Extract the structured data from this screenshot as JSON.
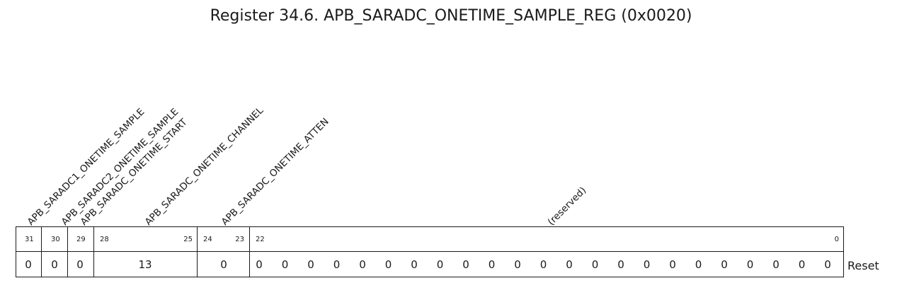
{
  "title": "Register 34.6. APB_SARADC_ONETIME_SAMPLE_REG (0x0020)",
  "fields": [
    {
      "name": "APB_SARADC1_ONETIME_SAMPLE",
      "bits": "31",
      "reset": "0"
    },
    {
      "name": "APB_SARADC2_ONETIME_SAMPLE",
      "bits": "30",
      "reset": "0"
    },
    {
      "name": "APB_SARADC_ONETIME_START",
      "bits": "29",
      "reset": "0"
    },
    {
      "name": "APB_SARADC_ONETIME_CHANNEL",
      "bits": "28:25",
      "msb": "28",
      "lsb": "25",
      "reset": "13"
    },
    {
      "name": "APB_SARADC_ONETIME_ATTEN",
      "bits": "24:23",
      "msb": "24",
      "lsb": "23",
      "reset": "0"
    },
    {
      "name": "(reserved)",
      "bits": "22:0",
      "msb": "22",
      "lsb": "0",
      "reset_bits": [
        "0",
        "0",
        "0",
        "0",
        "0",
        "0",
        "0",
        "0",
        "0",
        "0",
        "0",
        "0",
        "0",
        "0",
        "0",
        "0",
        "0",
        "0",
        "0",
        "0",
        "0",
        "0",
        "0"
      ]
    }
  ],
  "reset_label": "Reset"
}
